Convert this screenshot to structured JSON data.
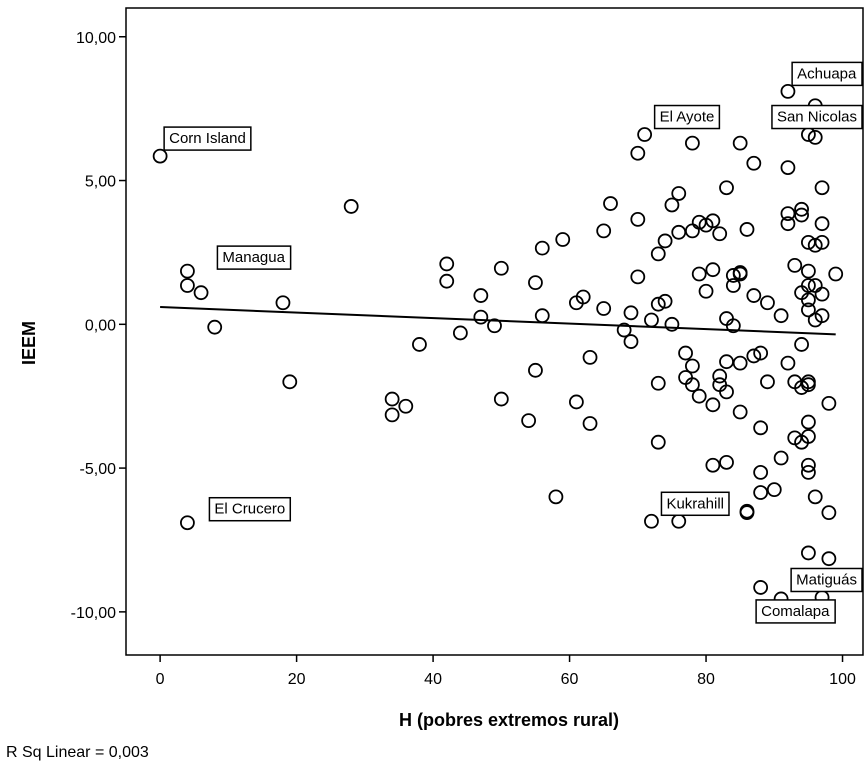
{
  "chart_data": {
    "type": "scatter",
    "xlabel": "H (pobres extremos rural)",
    "ylabel": "IEEM",
    "xlim": [
      -5,
      103
    ],
    "ylim": [
      -11.5,
      11
    ],
    "xticks": [
      0,
      20,
      40,
      60,
      80,
      100
    ],
    "yticks": [
      10,
      5,
      0,
      -5,
      -10
    ],
    "xtick_labels": [
      "0",
      "20",
      "40",
      "60",
      "80",
      "100"
    ],
    "ytick_labels": [
      "10,00",
      "5,00",
      "0,00",
      "-5,00",
      "-10,00"
    ],
    "fit_line": {
      "x": [
        0,
        99
      ],
      "y": [
        0.6,
        -0.35
      ]
    },
    "annotation": "R Sq Linear = 0,003",
    "labeled_points": [
      {
        "label": "Corn Island",
        "x": 0,
        "y": 5.85
      },
      {
        "label": "Managua",
        "x": 4,
        "y": 1.85
      },
      {
        "label": "El Crucero",
        "x": 4,
        "y": -6.9
      },
      {
        "label": "El Ayote",
        "x": 71,
        "y": 6.6
      },
      {
        "label": "Achuapa",
        "x": 92,
        "y": 8.1
      },
      {
        "label": "San Nicolas",
        "x": 95,
        "y": 6.6
      },
      {
        "label": "Kukrahill",
        "x": 72,
        "y": -6.85
      },
      {
        "label": "Matiguás",
        "x": 97,
        "y": -9.5
      },
      {
        "label": "Comalapa",
        "x": 91,
        "y": -9.55
      }
    ],
    "points": [
      [
        0,
        5.85
      ],
      [
        4,
        1.85
      ],
      [
        4,
        1.35
      ],
      [
        6,
        1.1
      ],
      [
        8,
        -0.1
      ],
      [
        4,
        -6.9
      ],
      [
        18,
        0.75
      ],
      [
        19,
        -2.0
      ],
      [
        28,
        4.1
      ],
      [
        34,
        -2.6
      ],
      [
        34,
        -3.15
      ],
      [
        36,
        -2.85
      ],
      [
        38,
        -0.7
      ],
      [
        42,
        2.1
      ],
      [
        42,
        1.5
      ],
      [
        44,
        -0.3
      ],
      [
        47,
        1.0
      ],
      [
        47,
        0.25
      ],
      [
        49,
        -0.05
      ],
      [
        50,
        1.95
      ],
      [
        50,
        -2.6
      ],
      [
        54,
        -3.35
      ],
      [
        55,
        1.45
      ],
      [
        55,
        -1.6
      ],
      [
        56,
        2.65
      ],
      [
        56,
        0.3
      ],
      [
        58,
        -6.0
      ],
      [
        59,
        2.95
      ],
      [
        61,
        -2.7
      ],
      [
        61,
        0.75
      ],
      [
        62,
        0.95
      ],
      [
        63,
        -1.15
      ],
      [
        63,
        -3.45
      ],
      [
        65,
        3.25
      ],
      [
        65,
        0.55
      ],
      [
        66,
        4.2
      ],
      [
        68,
        -0.2
      ],
      [
        69,
        -0.6
      ],
      [
        69,
        0.4
      ],
      [
        70,
        5.95
      ],
      [
        70,
        3.65
      ],
      [
        70,
        1.65
      ],
      [
        71,
        6.6
      ],
      [
        72,
        -6.85
      ],
      [
        72,
        0.15
      ],
      [
        73,
        2.45
      ],
      [
        73,
        0.7
      ],
      [
        73,
        -2.05
      ],
      [
        73,
        -4.1
      ],
      [
        74,
        2.9
      ],
      [
        74,
        0.8
      ],
      [
        75,
        4.15
      ],
      [
        75,
        0.0
      ],
      [
        76,
        4.55
      ],
      [
        76,
        3.2
      ],
      [
        76,
        -6.85
      ],
      [
        77,
        -1.0
      ],
      [
        77,
        -1.85
      ],
      [
        78,
        6.3
      ],
      [
        78,
        3.25
      ],
      [
        78,
        -1.45
      ],
      [
        78,
        -2.1
      ],
      [
        79,
        3.55
      ],
      [
        79,
        1.75
      ],
      [
        79,
        -2.5
      ],
      [
        80,
        1.15
      ],
      [
        80,
        3.45
      ],
      [
        81,
        1.9
      ],
      [
        81,
        3.6
      ],
      [
        81,
        -2.8
      ],
      [
        81,
        -4.9
      ],
      [
        82,
        3.15
      ],
      [
        82,
        -1.8
      ],
      [
        82,
        -2.1
      ],
      [
        83,
        4.75
      ],
      [
        83,
        0.2
      ],
      [
        83,
        -1.3
      ],
      [
        83,
        -2.35
      ],
      [
        83,
        -4.8
      ],
      [
        84,
        1.7
      ],
      [
        84,
        1.35
      ],
      [
        84,
        -0.05
      ],
      [
        85,
        6.3
      ],
      [
        85,
        1.8
      ],
      [
        85,
        1.75
      ],
      [
        85,
        -1.35
      ],
      [
        85,
        -3.05
      ],
      [
        86,
        3.3
      ],
      [
        86,
        -6.5
      ],
      [
        86,
        -6.55
      ],
      [
        87,
        5.6
      ],
      [
        87,
        1.0
      ],
      [
        87,
        -1.1
      ],
      [
        88,
        -1.0
      ],
      [
        88,
        -3.6
      ],
      [
        88,
        -5.15
      ],
      [
        88,
        -5.85
      ],
      [
        88,
        -9.15
      ],
      [
        89,
        0.75
      ],
      [
        89,
        -2.0
      ],
      [
        90,
        -5.75
      ],
      [
        91,
        0.3
      ],
      [
        91,
        -4.65
      ],
      [
        92,
        8.1
      ],
      [
        92,
        5.45
      ],
      [
        92,
        3.85
      ],
      [
        92,
        3.5
      ],
      [
        92,
        -1.35
      ],
      [
        93,
        2.05
      ],
      [
        93,
        -2.0
      ],
      [
        93,
        -3.95
      ],
      [
        94,
        4.0
      ],
      [
        94,
        3.8
      ],
      [
        94,
        1.1
      ],
      [
        94,
        -0.7
      ],
      [
        94,
        -2.2
      ],
      [
        94,
        -4.1
      ],
      [
        95,
        6.6
      ],
      [
        95,
        2.85
      ],
      [
        95,
        1.85
      ],
      [
        95,
        1.35
      ],
      [
        95,
        0.85
      ],
      [
        95,
        0.5
      ],
      [
        95,
        -2.1
      ],
      [
        95,
        -2.0
      ],
      [
        95,
        -3.4
      ],
      [
        95,
        -3.9
      ],
      [
        95,
        -4.9
      ],
      [
        95,
        -5.15
      ],
      [
        95,
        -7.95
      ],
      [
        96,
        7.6
      ],
      [
        96,
        6.5
      ],
      [
        96,
        2.75
      ],
      [
        96,
        1.35
      ],
      [
        96,
        0.15
      ],
      [
        96,
        -6.0
      ],
      [
        97,
        4.75
      ],
      [
        97,
        3.5
      ],
      [
        97,
        2.85
      ],
      [
        97,
        1.05
      ],
      [
        97,
        0.3
      ],
      [
        97,
        -9.5
      ],
      [
        98,
        -2.75
      ],
      [
        98,
        -6.55
      ],
      [
        98,
        -8.15
      ],
      [
        99,
        1.75
      ],
      [
        91,
        -9.55
      ]
    ]
  }
}
